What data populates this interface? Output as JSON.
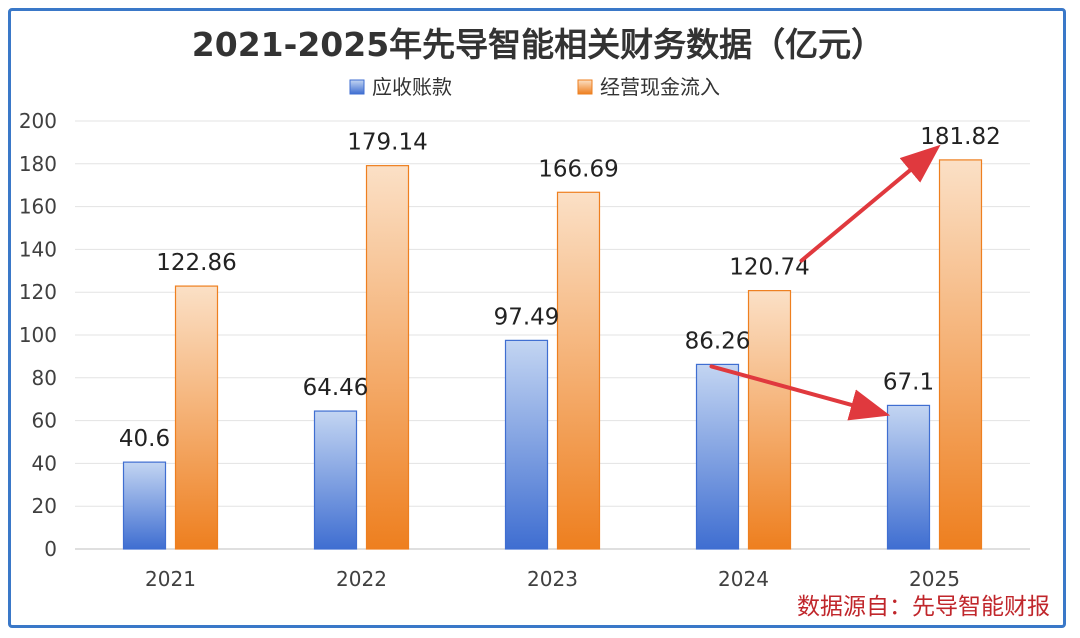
{
  "chart_data": {
    "type": "bar",
    "title": "2021-2025年先导智能相关财务数据（亿元）",
    "categories": [
      "2021",
      "2022",
      "2023",
      "2024",
      "2025"
    ],
    "series": [
      {
        "name": "应收账款",
        "values": [
          40.6,
          64.46,
          97.49,
          86.26,
          67.1
        ],
        "labels": [
          "40.6",
          "64.46",
          "97.49",
          "86.26",
          "67.1"
        ]
      },
      {
        "name": "经营现金流入",
        "values": [
          122.86,
          179.14,
          166.69,
          120.74,
          181.82
        ],
        "labels": [
          "122.86",
          "179.14",
          "166.69",
          "120.74",
          "181.82"
        ]
      }
    ],
    "ylim": [
      0,
      200
    ],
    "yticks": [
      0,
      20,
      40,
      60,
      80,
      100,
      120,
      140,
      160,
      180,
      200
    ],
    "grid": true,
    "legend_position": "top",
    "colors": {
      "blue_light": "#c3d5f2",
      "blue_dark": "#3f6ed1",
      "orange_light": "#fbe0c6",
      "orange_dark": "#ee7f1f",
      "arrow": "#e0393e",
      "source": "#c0262b",
      "frame": "#3a78c8"
    },
    "annotations": [
      {
        "type": "arrow",
        "from": {
          "series": "经营现金流入",
          "category": "2024"
        },
        "to": {
          "series": "经营现金流入",
          "category": "2025"
        }
      },
      {
        "type": "arrow",
        "from": {
          "series": "应收账款",
          "category": "2024"
        },
        "to": {
          "series": "应收账款",
          "category": "2025"
        }
      }
    ],
    "source": "数据源自：先导智能财报"
  }
}
